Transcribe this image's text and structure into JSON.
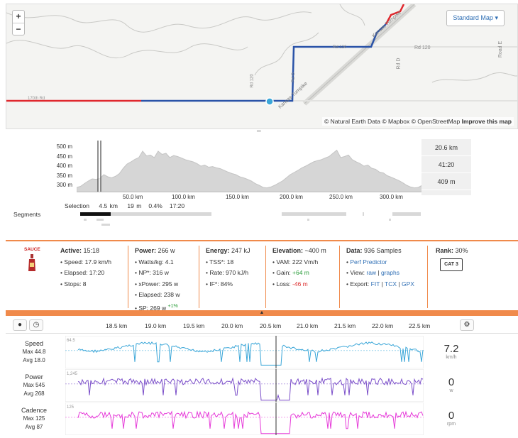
{
  "map": {
    "style_label": "Standard Map",
    "roads": [
      "Rd 120",
      "Rd 120",
      "Rd D",
      "Road E",
      "Kansas Turnpike",
      "Kansas Turnpike",
      "Rd G",
      "Rd 120",
      "170th Rd"
    ],
    "attribution": "© Natural Earth Data © Mapbox © OpenStreetMap",
    "improve_link": "Improve this map",
    "zoom_in": "+",
    "zoom_out": "−"
  },
  "elevation": {
    "y_ticks": [
      "500 m",
      "450 m",
      "400 m",
      "350 m",
      "300 m"
    ],
    "x_ticks": [
      "50.0 km",
      "100.0 km",
      "150.0 km",
      "200.0 km",
      "250.0 km",
      "300.0 km"
    ],
    "side_stats": [
      "20.6 km",
      "41:20",
      "409 m"
    ],
    "profile": [
      300,
      305,
      318,
      330,
      340,
      338,
      342,
      360,
      350,
      345,
      352,
      365,
      390,
      410,
      420,
      432,
      440,
      470,
      448,
      452,
      440,
      470,
      455,
      460,
      440,
      450,
      445,
      438,
      430,
      425,
      420,
      412,
      400,
      405,
      395,
      398,
      392,
      388,
      380,
      372,
      365,
      360,
      350,
      345,
      338,
      330,
      318,
      310,
      300,
      298,
      302,
      310,
      320,
      330,
      345,
      360,
      370,
      380,
      392,
      400,
      410,
      420,
      426,
      430,
      438,
      445,
      460,
      475,
      440,
      445,
      452,
      430,
      420,
      412,
      400,
      405,
      390,
      385,
      372,
      368,
      355,
      348,
      340,
      332,
      322,
      310,
      302,
      298,
      300,
      310
    ]
  },
  "selection": {
    "label": "Selection",
    "distance": "4.5 km",
    "elev": "19 m",
    "grade": "0.4%",
    "time": "17:20"
  },
  "segments_label": "Segments",
  "stats": {
    "logo": "SAUCE",
    "active": {
      "title": "Active:",
      "value": "15:18",
      "items": [
        "• Speed: 17.9 km/h",
        "• Elapsed: 17:20",
        "• Stops: 8"
      ]
    },
    "power": {
      "title": "Power:",
      "value": "266 w",
      "items": [
        "• Watts/kg: 4.1",
        "• NP*: 316 w",
        "• xPower: 295 w",
        "• Elapsed: 238 w",
        "• SP: 269 w"
      ],
      "sp_delta": "+1%"
    },
    "energy": {
      "title": "Energy:",
      "value": "247 kJ",
      "items": [
        "• TSS*: 18",
        "• Rate: 970 kJ/h",
        "• IF*: 84%"
      ]
    },
    "elevation": {
      "title": "Elevation:",
      "value": "~400 m",
      "vam": "• VAM: 222 Vm/h",
      "gain_label": "• Gain:",
      "gain": "+64 m",
      "loss_label": "• Loss:",
      "loss": "-46 m"
    },
    "data": {
      "title": "Data:",
      "value": "936 Samples",
      "perf": "Perf Predictor",
      "view_label": "• View:",
      "view_raw": "raw",
      "view_graphs": "graphs",
      "export_label": "• Export:",
      "exp_fit": "FIT",
      "exp_tcx": "TCX",
      "exp_gpx": "GPX"
    },
    "rank": {
      "title": "Rank:",
      "value": "30%",
      "badge": "CAT 3"
    }
  },
  "timeline": {
    "ticks": [
      "18.5 km",
      "19.0 km",
      "19.5 km",
      "20.0 km",
      "20.5 km",
      "21.0 km",
      "21.5 km",
      "22.0 km",
      "22.5 km"
    ],
    "collapse_glyph": "▲"
  },
  "streams": [
    {
      "name": "Speed",
      "max": "Max 44.8",
      "avg": "Avg 18.0",
      "value": "7.2",
      "unit": "km/h",
      "ymax": "64.5",
      "color": "#3aa6d8"
    },
    {
      "name": "Power",
      "max": "Max 545",
      "avg": "Avg 268",
      "value": "0",
      "unit": "w",
      "ymax": "1,245",
      "color": "#7b4fc9"
    },
    {
      "name": "Cadence",
      "max": "Max 125",
      "avg": "Avg 87",
      "value": "0",
      "unit": "rpm",
      "ymax": "125",
      "color": "#e63ad9"
    }
  ]
}
